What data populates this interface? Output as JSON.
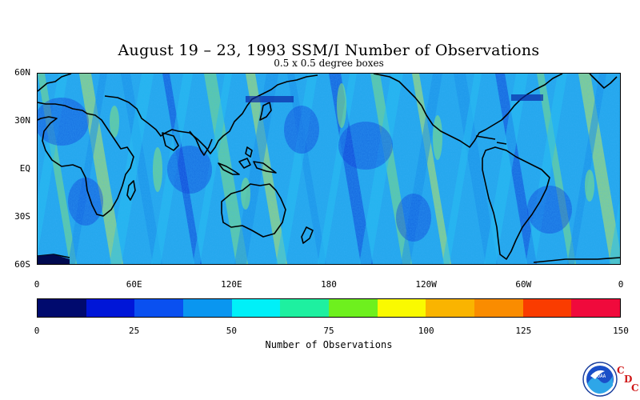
{
  "title": "August 19 – 23, 1993 SSM/I Number of Observations",
  "subtitle": "0.5 x 0.5 degree boxes",
  "map": {
    "latitude_labels": [
      {
        "text": "60N",
        "lat": 60
      },
      {
        "text": "30N",
        "lat": 30
      },
      {
        "text": "EQ",
        "lat": 0
      },
      {
        "text": "30S",
        "lat": -30
      },
      {
        "text": "60S",
        "lat": -60
      }
    ],
    "longitude_labels": [
      {
        "text": "0",
        "lon": 0
      },
      {
        "text": "60E",
        "lon": 60
      },
      {
        "text": "120E",
        "lon": 120
      },
      {
        "text": "180",
        "lon": 180
      },
      {
        "text": "120W",
        "lon": 240
      },
      {
        "text": "60W",
        "lon": 300
      },
      {
        "text": "0",
        "lon": 360
      }
    ],
    "lat_range": [
      -60,
      60
    ],
    "lon_range": [
      0,
      360
    ],
    "field_colors": {
      "low": "#0a2fd6",
      "mid_low": "#168ae8",
      "mid": "#22bff0",
      "high": "#8ee86a",
      "peak": "#d8f040"
    },
    "coast_color": "#000000"
  },
  "colorbar": {
    "colors": [
      "#000a6e",
      "#0016d8",
      "#0a50f0",
      "#0a96f0",
      "#00f0f8",
      "#1ef0a0",
      "#6ef01e",
      "#fafa00",
      "#fab400",
      "#fa8c00",
      "#fa3c00",
      "#f00a3c"
    ],
    "ticks": [
      "0",
      "25",
      "50",
      "75",
      "100",
      "125",
      "150"
    ],
    "range": [
      0,
      150
    ],
    "label": "Number of Observations"
  },
  "logo": {
    "icon": "noaa-logo-icon",
    "text": "NOAA",
    "cdc_letters": [
      "C",
      "D",
      "C"
    ]
  }
}
